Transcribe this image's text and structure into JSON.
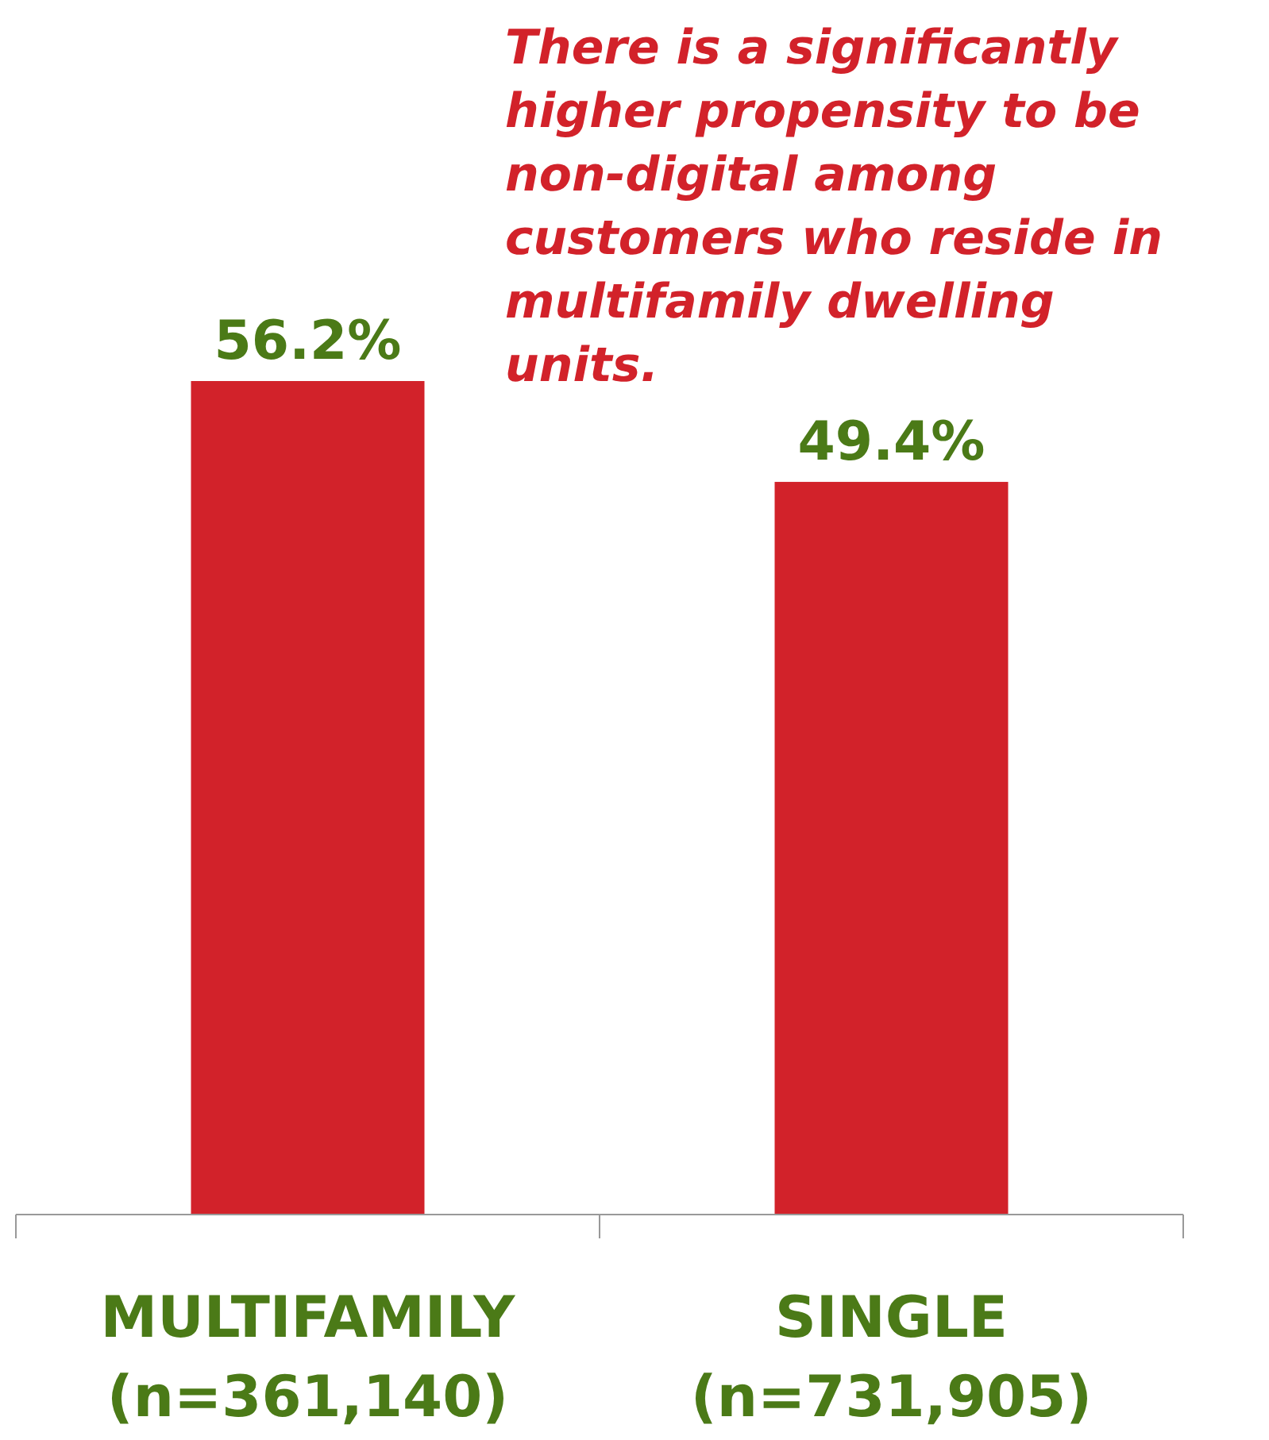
{
  "chart_data": {
    "type": "bar",
    "categories": [
      "MULTIFAMILY\n(n=361,140)",
      "SINGLE\n(n=731,905)"
    ],
    "values": [
      56.2,
      49.4
    ],
    "value_labels": [
      "56.2%",
      "49.4%"
    ],
    "color": "#d2222a",
    "annotations": [
      "There is a significantly higher propensity to be non-digital among customers who reside in multifamily dwelling units."
    ]
  }
}
